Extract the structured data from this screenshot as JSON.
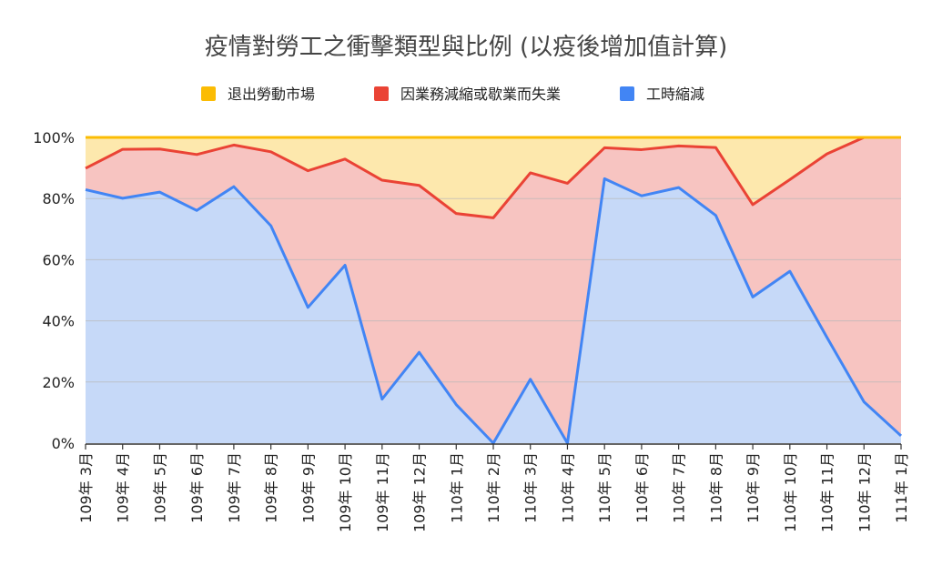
{
  "chart_data": {
    "type": "area",
    "stacked": "percent",
    "title": "疫情對勞工之衝擊類型與比例 (以疫後增加值計算)",
    "xlabel": "",
    "ylabel": "",
    "ylim": [
      0,
      100
    ],
    "y_ticks": [
      "0%",
      "20%",
      "40%",
      "60%",
      "80%",
      "100%"
    ],
    "grid": true,
    "legend_position": "top",
    "categories": [
      "109年 3月",
      "109年 4月",
      "109年 5月",
      "109年 6月",
      "109年 7月",
      "109年 8月",
      "109年 9月",
      "109年 10月",
      "109年 11月",
      "109年 12月",
      "110年 1月",
      "110年 2月",
      "110年 3月",
      "110年 4月",
      "110年 5月",
      "110年 6月",
      "110年 7月",
      "110年 8月",
      "110年 9月",
      "110年 10月",
      "110年 11月",
      "110年 12月",
      "111年 1月"
    ],
    "series": [
      {
        "name": "工時縮減",
        "color": "#4285f4",
        "fill": "#c6d9f8",
        "values": [
          82.9,
          80.1,
          82.1,
          76.1,
          83.9,
          71.1,
          44.4,
          58.2,
          14.4,
          29.7,
          12.6,
          0.0,
          20.9,
          0.0,
          86.5,
          80.9,
          83.6,
          74.5,
          47.8,
          56.2,
          34.6,
          13.5,
          2.4
        ]
      },
      {
        "name": "因業務減縮或歇業而失業",
        "color": "#ea4335",
        "fill": "#f7c4c1",
        "values": [
          7.0,
          16.0,
          14.1,
          18.3,
          13.6,
          24.2,
          44.7,
          34.7,
          71.6,
          54.6,
          62.5,
          73.7,
          67.5,
          85.0,
          10.1,
          15.1,
          13.6,
          22.2,
          30.2,
          30.0,
          60.0,
          86.5,
          97.6
        ]
      },
      {
        "name": "退出勞動市場",
        "color": "#fbbc04",
        "fill": "#fde8ad",
        "values": [
          10.1,
          3.9,
          3.8,
          5.6,
          2.5,
          4.7,
          10.9,
          7.1,
          14.0,
          15.7,
          24.9,
          26.3,
          11.6,
          15.0,
          3.4,
          4.0,
          2.8,
          3.3,
          22.0,
          13.8,
          5.4,
          0.0,
          0.0
        ]
      }
    ],
    "legend_order": [
      "退出勞動市場",
      "因業務減縮或歇業而失業",
      "工時縮減"
    ]
  }
}
